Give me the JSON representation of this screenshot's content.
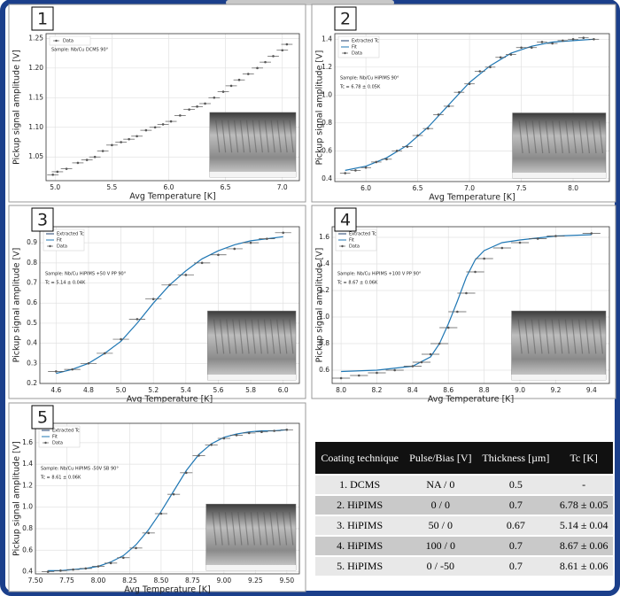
{
  "chart_data": [
    {
      "type": "scatter",
      "panel": "1",
      "xlabel": "Avg Temperature [K]",
      "ylabel": "Pickup signal amplitude [V]",
      "annotation": [
        "Sample: Nb/Cu DCMS 90°"
      ],
      "xlim": [
        4.92,
        7.15
      ],
      "ylim": [
        1.01,
        1.258
      ],
      "xticks": [
        {
          "value": 5,
          "label": "5.0"
        },
        5.5,
        {
          "value": 6,
          "label": "6.0"
        },
        6.5,
        {
          "value": 7,
          "label": "7.0"
        }
      ],
      "yticks": [
        1.05,
        {
          "value": 1.1,
          "label": "1.10"
        },
        1.15,
        {
          "value": 1.2,
          "label": "1.20"
        },
        1.25
      ],
      "grid": true,
      "xerr": 0.05,
      "series": [
        {
          "name": "Data",
          "kind": "errorbar",
          "color": "#555555",
          "x": [
            4.98,
            5.02,
            5.1,
            5.2,
            5.28,
            5.35,
            5.42,
            5.5,
            5.58,
            5.65,
            5.72,
            5.8,
            5.88,
            5.95,
            6.02,
            6.1,
            6.18,
            6.25,
            6.32,
            6.4,
            6.48,
            6.55,
            6.62,
            6.7,
            6.78,
            6.85,
            6.92,
            7.0,
            7.04
          ],
          "values": [
            1.02,
            1.025,
            1.03,
            1.04,
            1.045,
            1.05,
            1.06,
            1.07,
            1.075,
            1.08,
            1.085,
            1.095,
            1.1,
            1.105,
            1.11,
            1.12,
            1.13,
            1.135,
            1.14,
            1.15,
            1.16,
            1.17,
            1.18,
            1.19,
            1.2,
            1.21,
            1.22,
            1.23,
            1.24
          ]
        }
      ]
    },
    {
      "type": "scatter",
      "panel": "2",
      "xlabel": "Avg Temperature [K]",
      "ylabel": "Pickup signal amplitude [V]",
      "annotation": [
        "Sample: Nb/Cu HiPIMS 90°",
        "Tc = 6.78 ± 0.05K"
      ],
      "xlim": [
        5.7,
        8.35
      ],
      "ylim": [
        0.38,
        1.44
      ],
      "xticks": [
        {
          "value": 6,
          "label": "6.0"
        },
        6.5,
        {
          "value": 7,
          "label": "7.0"
        },
        7.5,
        {
          "value": 8,
          "label": "8.0"
        }
      ],
      "yticks": [
        0.4,
        0.6,
        0.8,
        {
          "value": 1,
          "label": "1.0"
        },
        1.2,
        1.4
      ],
      "grid": true,
      "xerr": 0.05,
      "legend_extra": "Extracted Tc",
      "legend_extra_color": "#1f3f6e",
      "series": [
        {
          "name": "Fit",
          "kind": "line",
          "color": "#1f77b4",
          "x": [
            5.8,
            6.0,
            6.2,
            6.4,
            6.6,
            6.8,
            7.0,
            7.2,
            7.4,
            7.6,
            7.8,
            8.0,
            8.2
          ],
          "values": [
            0.46,
            0.49,
            0.55,
            0.64,
            0.77,
            0.93,
            1.09,
            1.21,
            1.3,
            1.35,
            1.38,
            1.39,
            1.4
          ]
        },
        {
          "name": "Data",
          "kind": "errorbar",
          "color": "#555555",
          "x": [
            5.8,
            5.9,
            6.0,
            6.1,
            6.2,
            6.3,
            6.4,
            6.5,
            6.6,
            6.7,
            6.8,
            6.9,
            7.0,
            7.1,
            7.2,
            7.3,
            7.4,
            7.5,
            7.6,
            7.7,
            7.8,
            7.9,
            8.0,
            8.1,
            8.2
          ],
          "values": [
            0.44,
            0.46,
            0.48,
            0.52,
            0.54,
            0.6,
            0.63,
            0.71,
            0.76,
            0.86,
            0.92,
            1.02,
            1.08,
            1.17,
            1.2,
            1.27,
            1.29,
            1.34,
            1.34,
            1.38,
            1.37,
            1.39,
            1.4,
            1.41,
            1.4
          ]
        }
      ]
    },
    {
      "type": "scatter",
      "panel": "3",
      "xlabel": "Avg Temperature [K]",
      "ylabel": "Pickup signal amplitude [V]",
      "annotation": [
        "Sample: Nb/Cu HiPIMS +50 V PP 90°",
        "Tc = 5.14 ± 0.04K"
      ],
      "xlim": [
        4.5,
        6.1
      ],
      "ylim": [
        0.2,
        0.98
      ],
      "xticks": [
        4.6,
        4.8,
        {
          "value": 5,
          "label": "5.0"
        },
        5.2,
        5.4,
        5.6,
        5.8,
        {
          "value": 6,
          "label": "6.0"
        }
      ],
      "yticks": [
        0.2,
        0.3,
        0.4,
        0.5,
        0.6,
        0.7,
        0.8,
        0.9
      ],
      "grid": true,
      "xerr": 0.05,
      "legend_extra": "Extracted Tc",
      "legend_extra_color": "#1f3f6e",
      "series": [
        {
          "name": "Fit",
          "kind": "line",
          "color": "#1f77b4",
          "x": [
            4.6,
            4.7,
            4.8,
            4.9,
            5.0,
            5.1,
            5.2,
            5.3,
            5.4,
            5.5,
            5.6,
            5.7,
            5.8,
            5.9,
            6.0
          ],
          "values": [
            0.25,
            0.27,
            0.3,
            0.35,
            0.41,
            0.5,
            0.6,
            0.69,
            0.76,
            0.82,
            0.86,
            0.89,
            0.91,
            0.92,
            0.93
          ]
        },
        {
          "name": "Data",
          "kind": "errorbar",
          "color": "#555555",
          "x": [
            4.6,
            4.7,
            4.8,
            4.9,
            5.0,
            5.1,
            5.2,
            5.3,
            5.4,
            5.5,
            5.6,
            5.7,
            5.8,
            5.9,
            6.0
          ],
          "values": [
            0.26,
            0.27,
            0.3,
            0.35,
            0.42,
            0.52,
            0.62,
            0.69,
            0.74,
            0.8,
            0.84,
            0.87,
            0.9,
            0.92,
            0.95
          ]
        }
      ]
    },
    {
      "type": "scatter",
      "panel": "4",
      "xlabel": "Avg Temperature [K]",
      "ylabel": "Pickup signal amplitude [V]",
      "annotation": [
        "Sample: Nb/Cu HiPIMS +100 V PP 90°",
        "Tc = 8.67 ± 0.06K"
      ],
      "xlim": [
        7.95,
        9.5
      ],
      "ylim": [
        0.5,
        1.68
      ],
      "xticks": [
        {
          "value": 8,
          "label": "8.0"
        },
        8.2,
        8.4,
        8.6,
        8.8,
        {
          "value": 9,
          "label": "9.0"
        },
        9.2,
        9.4
      ],
      "yticks": [
        0.6,
        0.8,
        {
          "value": 1,
          "label": "1.0"
        },
        1.2,
        1.4,
        1.6
      ],
      "grid": true,
      "xerr": 0.05,
      "legend_extra": "Extracted Tc",
      "legend_extra_color": "#1f3f6e",
      "series": [
        {
          "name": "Fit",
          "kind": "line",
          "color": "#1f77b4",
          "x": [
            8.0,
            8.2,
            8.4,
            8.5,
            8.55,
            8.6,
            8.65,
            8.7,
            8.75,
            8.8,
            8.9,
            9.0,
            9.2,
            9.4
          ],
          "values": [
            0.59,
            0.6,
            0.63,
            0.7,
            0.8,
            0.95,
            1.12,
            1.3,
            1.43,
            1.5,
            1.56,
            1.58,
            1.61,
            1.62
          ]
        },
        {
          "name": "Data",
          "kind": "errorbar",
          "color": "#555555",
          "x": [
            8.0,
            8.1,
            8.2,
            8.3,
            8.4,
            8.45,
            8.5,
            8.55,
            8.6,
            8.65,
            8.7,
            8.75,
            8.8,
            8.9,
            9.0,
            9.1,
            9.2,
            9.4
          ],
          "values": [
            0.54,
            0.56,
            0.58,
            0.6,
            0.63,
            0.66,
            0.72,
            0.8,
            0.92,
            1.04,
            1.18,
            1.34,
            1.44,
            1.52,
            1.56,
            1.59,
            1.61,
            1.63
          ]
        }
      ]
    },
    {
      "type": "scatter",
      "panel": "5",
      "xlabel": "Avg Temperature [K]",
      "ylabel": "Pickup signal amplitude [V]",
      "annotation": [
        "Sample: Nb/Cu HiPIMS -50V SB 90°",
        "Tc = 8.61 ± 0.06K"
      ],
      "xlim": [
        7.5,
        9.6
      ],
      "ylim": [
        0.38,
        1.78
      ],
      "xticks": [
        {
          "value": 7.5,
          "label": "7.50"
        },
        7.75,
        {
          "value": 8,
          "label": "8.00"
        },
        8.25,
        {
          "value": 8.5,
          "label": "8.50"
        },
        8.75,
        {
          "value": 9,
          "label": "9.00"
        },
        9.25,
        {
          "value": 9.5,
          "label": "9.50"
        }
      ],
      "yticks": [
        0.4,
        0.6,
        0.8,
        {
          "value": 1,
          "label": "1.0"
        },
        1.2,
        1.4,
        1.6
      ],
      "grid": true,
      "xerr": 0.05,
      "legend_extra": "Extracted Tc",
      "legend_extra_color": "#1f3f6e",
      "series": [
        {
          "name": "Fit",
          "kind": "line",
          "color": "#1f77b4",
          "x": [
            7.6,
            7.7,
            7.8,
            7.9,
            8.0,
            8.1,
            8.2,
            8.3,
            8.4,
            8.5,
            8.6,
            8.7,
            8.8,
            8.9,
            9.0,
            9.1,
            9.2,
            9.3,
            9.4,
            9.5
          ],
          "values": [
            0.41,
            0.41,
            0.42,
            0.43,
            0.45,
            0.49,
            0.55,
            0.65,
            0.79,
            0.96,
            1.15,
            1.34,
            1.49,
            1.59,
            1.65,
            1.68,
            1.7,
            1.71,
            1.71,
            1.72
          ]
        },
        {
          "name": "Data",
          "kind": "errorbar",
          "color": "#555555",
          "x": [
            7.6,
            7.7,
            7.8,
            7.9,
            8.0,
            8.1,
            8.2,
            8.3,
            8.4,
            8.5,
            8.6,
            8.7,
            8.8,
            8.9,
            9.0,
            9.1,
            9.2,
            9.3,
            9.4,
            9.5
          ],
          "values": [
            0.4,
            0.41,
            0.42,
            0.43,
            0.45,
            0.48,
            0.53,
            0.62,
            0.76,
            0.94,
            1.12,
            1.32,
            1.48,
            1.58,
            1.64,
            1.67,
            1.69,
            1.7,
            1.71,
            1.72
          ]
        }
      ]
    }
  ],
  "table": {
    "header": [
      "Coating technique",
      "Pulse/Bias [V]",
      "Thickness [µm]",
      "Tc [K]"
    ],
    "rows": [
      [
        "1. DCMS",
        "NA / 0",
        "0.5",
        "-"
      ],
      [
        "2. HiPIMS",
        "0 / 0",
        "0.7",
        "6.78 ± 0.05"
      ],
      [
        "3. HiPIMS",
        "50 / 0",
        "0.67",
        "5.14 ± 0.04"
      ],
      [
        "4. HiPIMS",
        "100 / 0",
        "0.7",
        "8.67 ± 0.06"
      ],
      [
        "5. HiPIMS",
        "0 / -50",
        "0.7",
        "8.61 ± 0.06"
      ]
    ]
  }
}
